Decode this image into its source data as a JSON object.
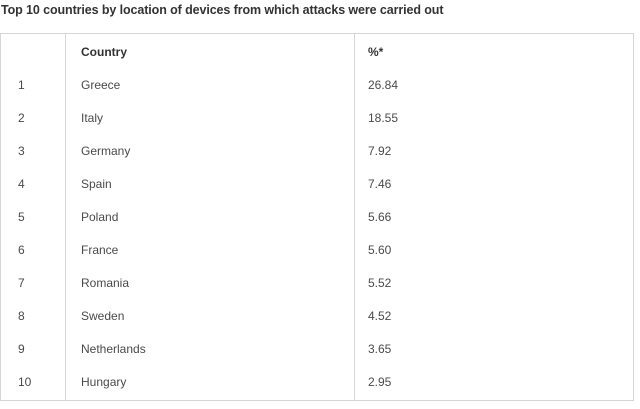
{
  "title": "Top 10 countries by location of devices from which attacks were carried out",
  "table": {
    "headers": [
      "",
      "Country",
      "%*"
    ],
    "rows": [
      [
        "1",
        "Greece",
        "26.84"
      ],
      [
        "2",
        "Italy",
        "18.55"
      ],
      [
        "3",
        "Germany",
        "7.92"
      ],
      [
        "4",
        "Spain",
        "7.46"
      ],
      [
        "5",
        "Poland",
        "5.66"
      ],
      [
        "6",
        "France",
        "5.60"
      ],
      [
        "7",
        "Romania",
        "5.52"
      ],
      [
        "8",
        "Sweden",
        "4.52"
      ],
      [
        "9",
        "Netherlands",
        "3.65"
      ],
      [
        "10",
        "Hungary",
        "2.95"
      ]
    ]
  }
}
